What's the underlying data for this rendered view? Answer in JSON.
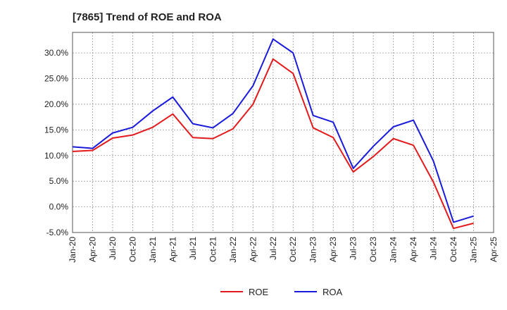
{
  "chart_data": {
    "type": "line",
    "title": "[7865]  Trend of ROE and ROA",
    "xlabel": "",
    "ylabel": "",
    "x_ticks": [
      "Jan-20",
      "Apr-20",
      "Jul-20",
      "Oct-20",
      "Jan-21",
      "Apr-21",
      "Jul-21",
      "Oct-21",
      "Jan-22",
      "Apr-22",
      "Jul-22",
      "Oct-22",
      "Jan-23",
      "Apr-23",
      "Jul-23",
      "Oct-23",
      "Jan-24",
      "Apr-24",
      "Jul-24",
      "Oct-24",
      "Jan-25",
      "Apr-25"
    ],
    "y_ticks": [
      "-5.0%",
      "0.0%",
      "5.0%",
      "10.0%",
      "15.0%",
      "20.0%",
      "25.0%",
      "30.0%"
    ],
    "ylim": [
      -5,
      34
    ],
    "grid": true,
    "legend_position": "bottom",
    "x": [
      "Jan-20",
      "Apr-20",
      "Jul-20",
      "Oct-20",
      "Jan-21",
      "Apr-21",
      "Jul-21",
      "Oct-21",
      "Jan-22",
      "Apr-22",
      "Jul-22",
      "Oct-22",
      "Jan-23",
      "Apr-23",
      "Jul-23",
      "Oct-23",
      "Jan-24",
      "Apr-24",
      "Jul-24",
      "Oct-24",
      "Jan-25"
    ],
    "series": [
      {
        "name": "ROE",
        "color": "#e31a1c",
        "values": [
          10.8,
          11.0,
          13.4,
          14.0,
          15.5,
          18.1,
          13.5,
          13.3,
          15.2,
          20.0,
          28.8,
          26.0,
          15.4,
          13.5,
          6.8,
          9.8,
          13.3,
          12.0,
          4.8,
          -4.2,
          -3.2
        ]
      },
      {
        "name": "ROA",
        "color": "#1a1adb",
        "values": [
          11.7,
          11.4,
          14.4,
          15.5,
          18.7,
          21.4,
          16.2,
          15.4,
          18.2,
          23.6,
          32.7,
          30.0,
          17.8,
          16.5,
          7.5,
          11.8,
          15.6,
          16.9,
          8.9,
          -3.0,
          -1.8
        ]
      }
    ]
  }
}
